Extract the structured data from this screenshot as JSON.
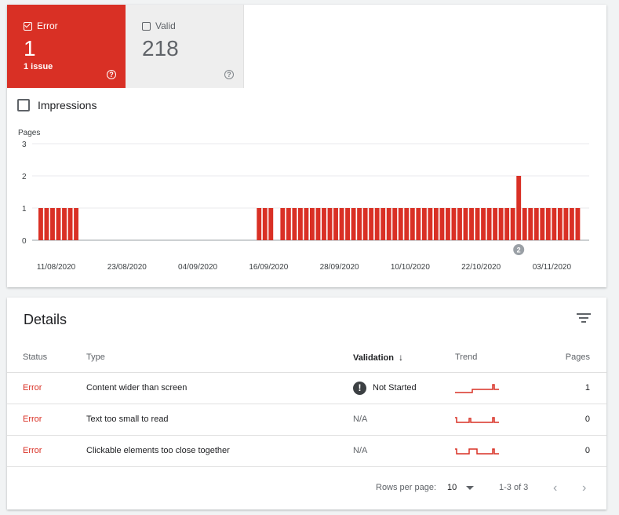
{
  "summary": {
    "error": {
      "label": "Error",
      "count": "1",
      "sub": "1 issue",
      "help": "?"
    },
    "valid": {
      "label": "Valid",
      "count": "218",
      "help": "?"
    }
  },
  "impressions": {
    "label": "Impressions"
  },
  "chart_data": {
    "type": "bar",
    "ylabel": "Pages",
    "ylim": [
      0,
      3
    ],
    "yticks": [
      0,
      1,
      2,
      3
    ],
    "xtick_labels": [
      "11/08/2020",
      "23/08/2020",
      "04/09/2020",
      "16/09/2020",
      "28/09/2020",
      "10/10/2020",
      "22/10/2020",
      "03/11/2020"
    ],
    "start_date": "2020-08-08",
    "values": [
      1,
      1,
      1,
      1,
      1,
      1,
      1,
      0,
      0,
      0,
      0,
      0,
      0,
      0,
      0,
      0,
      0,
      0,
      0,
      0,
      0,
      0,
      0,
      0,
      0,
      0,
      0,
      0,
      0,
      0,
      0,
      0,
      0,
      0,
      0,
      0,
      0,
      1,
      1,
      1,
      0,
      1,
      1,
      1,
      1,
      1,
      1,
      1,
      1,
      1,
      1,
      1,
      1,
      1,
      1,
      1,
      1,
      1,
      1,
      1,
      1,
      1,
      1,
      1,
      1,
      1,
      1,
      1,
      1,
      1,
      1,
      1,
      1,
      1,
      1,
      1,
      1,
      1,
      1,
      1,
      1,
      2,
      1,
      1,
      1,
      1,
      1,
      1,
      1,
      1,
      1,
      1
    ],
    "annotation": {
      "label": "2",
      "bar_index": 81
    },
    "bar_color": "#d93025"
  },
  "details": {
    "title": "Details",
    "columns": {
      "status": "Status",
      "type": "Type",
      "validation": "Validation",
      "trend": "Trend",
      "pages": "Pages"
    },
    "rows": [
      {
        "status": "Error",
        "type": "Content wider than screen",
        "validation": "Not Started",
        "pages": "1"
      },
      {
        "status": "Error",
        "type": "Text too small to read",
        "validation": "N/A",
        "pages": "0"
      },
      {
        "status": "Error",
        "type": "Clickable elements too close together",
        "validation": "N/A",
        "pages": "0"
      }
    ],
    "validation_icon": "!",
    "sort_arrow": "↓"
  },
  "pagination": {
    "rows_per_page_label": "Rows per page:",
    "rows_per_page_value": "10",
    "range": "1-3 of 3",
    "prev": "‹",
    "next": "›"
  }
}
